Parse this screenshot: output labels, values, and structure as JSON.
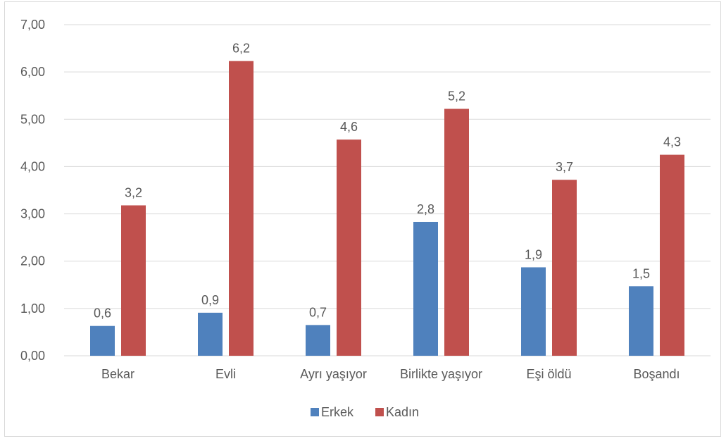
{
  "chart_data": {
    "type": "bar",
    "categories": [
      "Bekar",
      "Evli",
      "Ayrı yaşıyor",
      "Birlikte yaşıyor",
      "Eşi öldü",
      "Boşandı"
    ],
    "series": [
      {
        "name": "Erkek",
        "color": "#4f81bd",
        "values": [
          0.63,
          0.91,
          0.65,
          2.83,
          1.87,
          1.47
        ],
        "labels": [
          "0,6",
          "0,9",
          "0,7",
          "2,8",
          "1,9",
          "1,5"
        ]
      },
      {
        "name": "Kadın",
        "color": "#c0504d",
        "values": [
          3.18,
          6.23,
          4.57,
          5.22,
          3.72,
          4.25
        ],
        "labels": [
          "3,2",
          "6,2",
          "4,6",
          "5,2",
          "3,7",
          "4,3"
        ]
      }
    ],
    "yticks": [
      "0,00",
      "1,00",
      "2,00",
      "3,00",
      "4,00",
      "5,00",
      "6,00",
      "7,00"
    ],
    "ylim": [
      0,
      7
    ],
    "grid": true,
    "legend_position": "bottom"
  }
}
